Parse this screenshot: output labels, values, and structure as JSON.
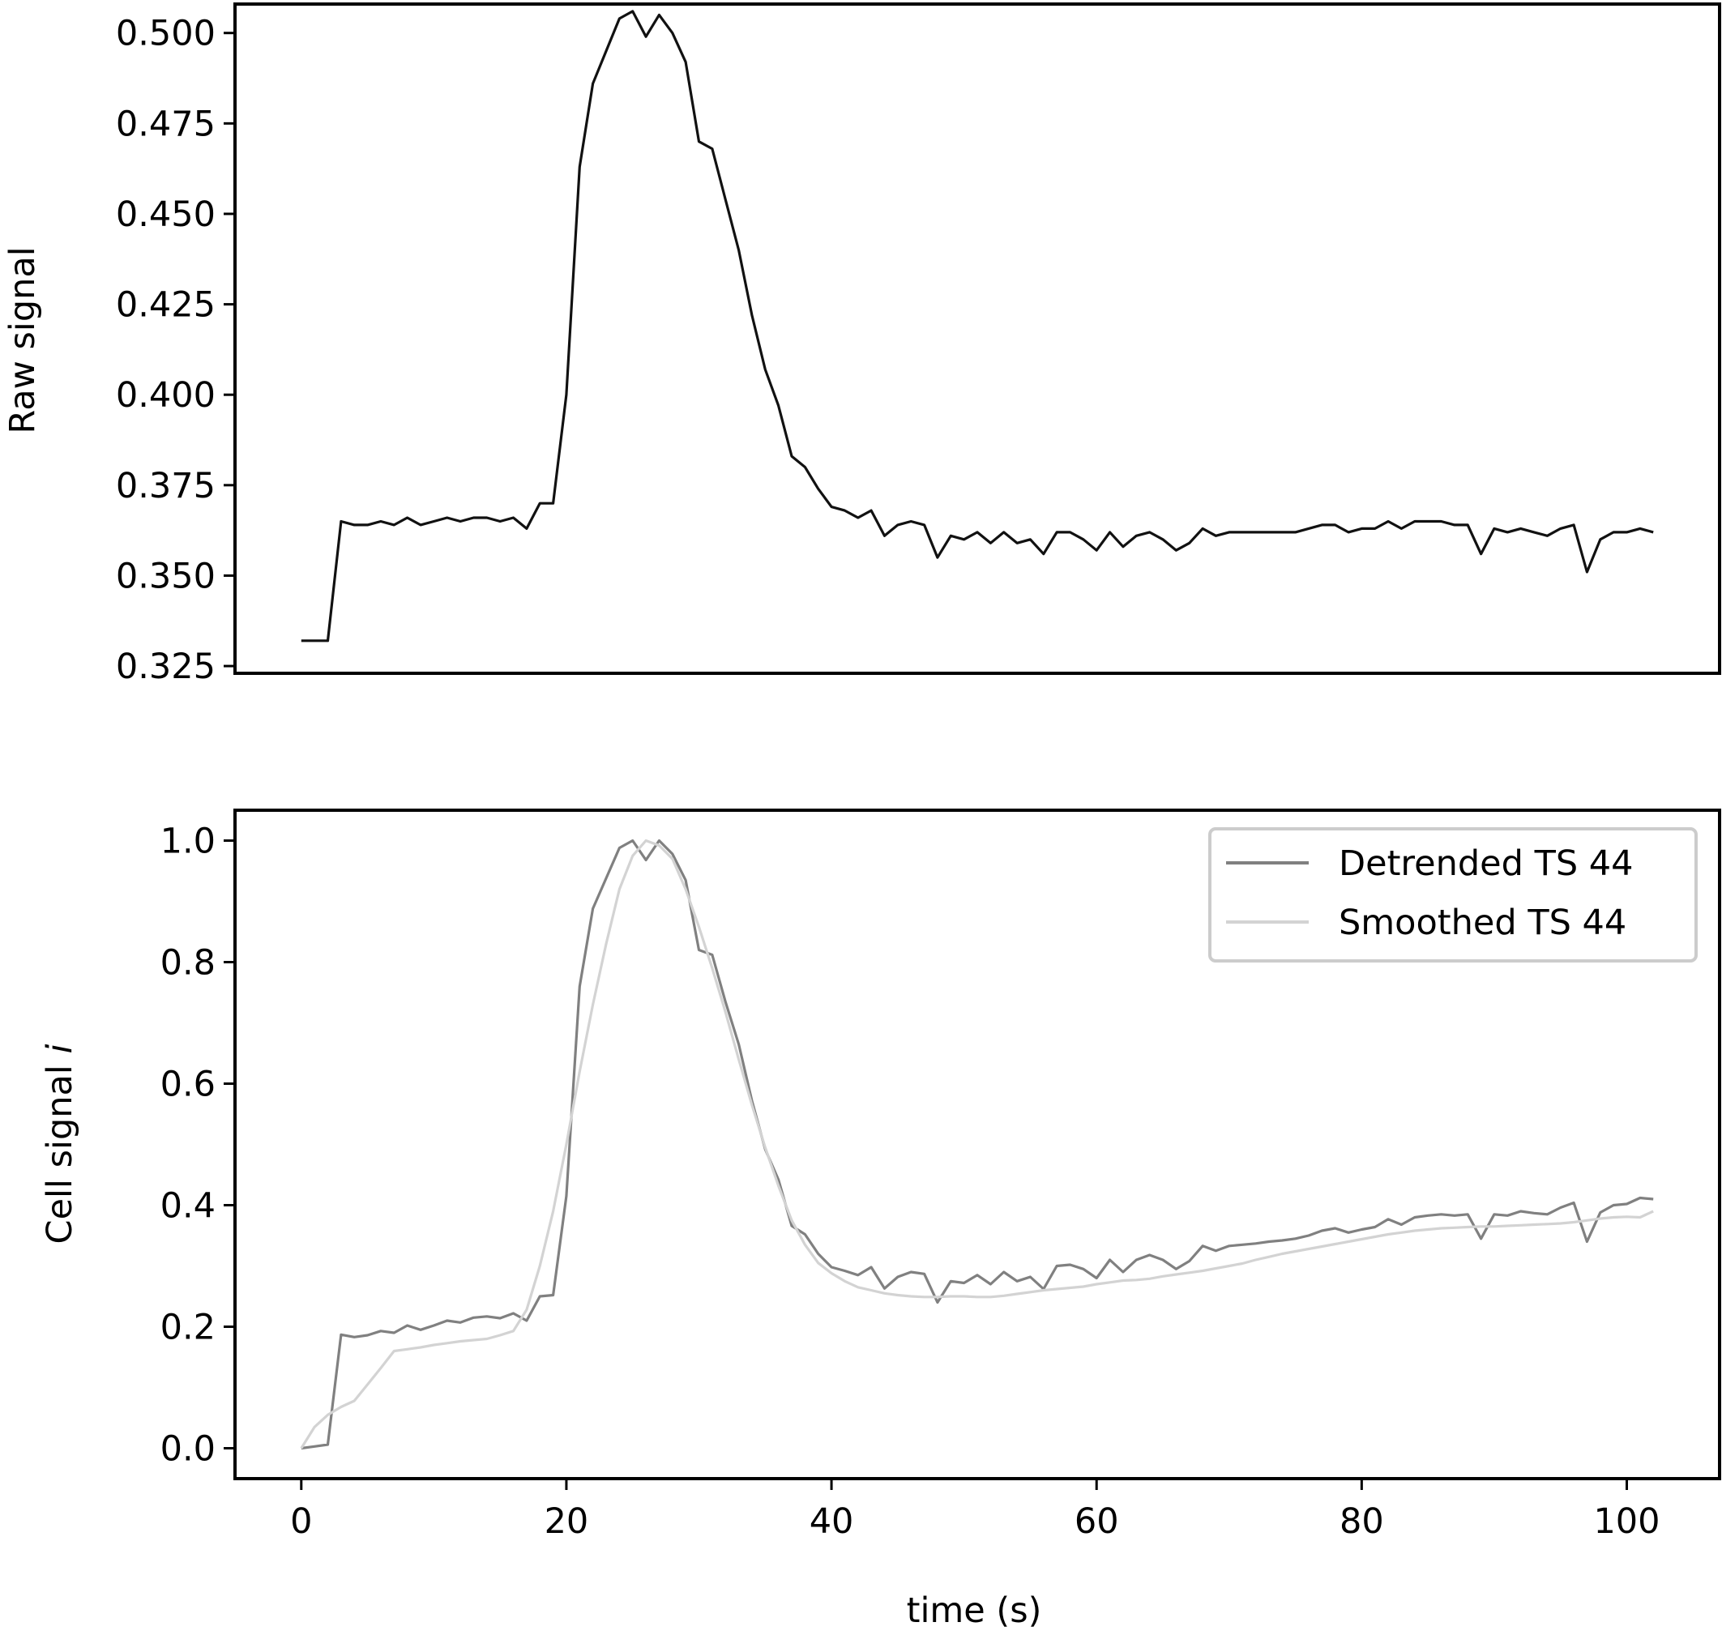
{
  "chart_data": [
    {
      "type": "line",
      "title": "",
      "xlabel": "",
      "ylabel": "Raw signal",
      "xlim": [
        -5,
        107
      ],
      "ylim": [
        0.323,
        0.508
      ],
      "yticks": [
        0.325,
        0.35,
        0.375,
        0.4,
        0.425,
        0.45,
        0.475,
        0.5
      ],
      "ytick_labels": [
        "0.325",
        "0.350",
        "0.375",
        "0.400",
        "0.425",
        "0.450",
        "0.475",
        "0.500"
      ],
      "grid": false,
      "series": [
        {
          "color": "#111111",
          "x": [
            0,
            1,
            2,
            3,
            4,
            5,
            6,
            7,
            8,
            9,
            10,
            11,
            12,
            13,
            14,
            15,
            16,
            17,
            18,
            19,
            20,
            21,
            22,
            23,
            24,
            25,
            26,
            27,
            28,
            29,
            30,
            31,
            32,
            33,
            34,
            35,
            36,
            37,
            38,
            39,
            40,
            41,
            42,
            43,
            44,
            45,
            46,
            47,
            48,
            49,
            50,
            51,
            52,
            53,
            54,
            55,
            56,
            57,
            58,
            59,
            60,
            61,
            62,
            63,
            64,
            65,
            66,
            67,
            68,
            69,
            70,
            71,
            72,
            73,
            74,
            75,
            76,
            77,
            78,
            79,
            80,
            81,
            82,
            83,
            84,
            85,
            86,
            87,
            88,
            89,
            90,
            91,
            92,
            93,
            94,
            95,
            96,
            97,
            98,
            99,
            100,
            101,
            102
          ],
          "y": [
            0.332,
            0.332,
            0.332,
            0.365,
            0.364,
            0.364,
            0.365,
            0.364,
            0.366,
            0.364,
            0.365,
            0.366,
            0.365,
            0.366,
            0.366,
            0.365,
            0.366,
            0.363,
            0.37,
            0.37,
            0.4,
            0.463,
            0.486,
            0.495,
            0.504,
            0.506,
            0.499,
            0.505,
            0.5,
            0.492,
            0.47,
            0.468,
            0.454,
            0.44,
            0.422,
            0.407,
            0.397,
            0.383,
            0.38,
            0.374,
            0.369,
            0.368,
            0.366,
            0.368,
            0.361,
            0.364,
            0.365,
            0.364,
            0.355,
            0.361,
            0.36,
            0.362,
            0.359,
            0.362,
            0.359,
            0.36,
            0.356,
            0.362,
            0.362,
            0.36,
            0.357,
            0.362,
            0.358,
            0.361,
            0.362,
            0.36,
            0.357,
            0.359,
            0.363,
            0.361,
            0.362,
            0.362,
            0.362,
            0.362,
            0.362,
            0.362,
            0.363,
            0.364,
            0.364,
            0.362,
            0.363,
            0.363,
            0.365,
            0.363,
            0.365,
            0.365,
            0.365,
            0.364,
            0.364,
            0.356,
            0.363,
            0.362,
            0.363,
            0.362,
            0.361,
            0.363,
            0.364,
            0.351,
            0.36,
            0.362,
            0.362,
            0.363,
            0.362
          ]
        }
      ]
    },
    {
      "type": "line",
      "title": "",
      "xlabel": "time (s)",
      "ylabel": "Cell signal",
      "ylabel_italic_suffix": "i",
      "xlim": [
        -5,
        107
      ],
      "ylim": [
        -0.05,
        1.05
      ],
      "xticks": [
        0,
        20,
        40,
        60,
        80,
        100
      ],
      "xtick_labels": [
        "0",
        "20",
        "40",
        "60",
        "80",
        "100"
      ],
      "yticks": [
        0.0,
        0.2,
        0.4,
        0.6,
        0.8,
        1.0
      ],
      "ytick_labels": [
        "0.0",
        "0.2",
        "0.4",
        "0.6",
        "0.8",
        "1.0"
      ],
      "grid": false,
      "legend": "top-right",
      "series": [
        {
          "name": "Detrended TS 44",
          "color": "#808080",
          "x": [
            0,
            1,
            2,
            3,
            4,
            5,
            6,
            7,
            8,
            9,
            10,
            11,
            12,
            13,
            14,
            15,
            16,
            17,
            18,
            19,
            20,
            21,
            22,
            23,
            24,
            25,
            26,
            27,
            28,
            29,
            30,
            31,
            32,
            33,
            34,
            35,
            36,
            37,
            38,
            39,
            40,
            41,
            42,
            43,
            44,
            45,
            46,
            47,
            48,
            49,
            50,
            51,
            52,
            53,
            54,
            55,
            56,
            57,
            58,
            59,
            60,
            61,
            62,
            63,
            64,
            65,
            66,
            67,
            68,
            69,
            70,
            71,
            72,
            73,
            74,
            75,
            76,
            77,
            78,
            79,
            80,
            81,
            82,
            83,
            84,
            85,
            86,
            87,
            88,
            89,
            90,
            91,
            92,
            93,
            94,
            95,
            96,
            97,
            98,
            99,
            100,
            101,
            102
          ],
          "y": [
            0.0,
            0.003,
            0.006,
            0.187,
            0.183,
            0.186,
            0.193,
            0.19,
            0.202,
            0.195,
            0.202,
            0.21,
            0.207,
            0.215,
            0.217,
            0.214,
            0.222,
            0.21,
            0.25,
            0.252,
            0.415,
            0.76,
            0.888,
            0.938,
            0.988,
            1.0,
            0.968,
            1.0,
            0.978,
            0.935,
            0.82,
            0.812,
            0.735,
            0.665,
            0.572,
            0.492,
            0.442,
            0.366,
            0.352,
            0.32,
            0.298,
            0.292,
            0.285,
            0.298,
            0.263,
            0.282,
            0.29,
            0.287,
            0.24,
            0.275,
            0.272,
            0.285,
            0.27,
            0.29,
            0.275,
            0.282,
            0.262,
            0.3,
            0.302,
            0.295,
            0.28,
            0.31,
            0.29,
            0.31,
            0.318,
            0.31,
            0.295,
            0.308,
            0.333,
            0.325,
            0.333,
            0.335,
            0.337,
            0.34,
            0.342,
            0.345,
            0.35,
            0.358,
            0.362,
            0.355,
            0.36,
            0.364,
            0.377,
            0.368,
            0.38,
            0.383,
            0.385,
            0.383,
            0.385,
            0.345,
            0.385,
            0.383,
            0.39,
            0.387,
            0.385,
            0.396,
            0.404,
            0.34,
            0.388,
            0.4,
            0.402,
            0.412,
            0.41
          ]
        },
        {
          "name": "Smoothed TS 44",
          "color": "#d3d3d3",
          "x": [
            0,
            1,
            2,
            3,
            4,
            5,
            6,
            7,
            8,
            9,
            10,
            11,
            12,
            13,
            14,
            15,
            16,
            17,
            18,
            19,
            20,
            21,
            22,
            23,
            24,
            25,
            26,
            27,
            28,
            29,
            30,
            31,
            32,
            33,
            34,
            35,
            36,
            37,
            38,
            39,
            40,
            41,
            42,
            43,
            44,
            45,
            46,
            47,
            48,
            49,
            50,
            51,
            52,
            53,
            54,
            55,
            56,
            57,
            58,
            59,
            60,
            61,
            62,
            63,
            64,
            65,
            66,
            67,
            68,
            69,
            70,
            71,
            72,
            73,
            74,
            75,
            76,
            77,
            78,
            79,
            80,
            81,
            82,
            83,
            84,
            85,
            86,
            87,
            88,
            89,
            90,
            91,
            92,
            93,
            94,
            95,
            96,
            97,
            98,
            99,
            100,
            101,
            102
          ],
          "y": [
            0.0,
            0.035,
            0.055,
            0.068,
            0.078,
            0.105,
            0.132,
            0.16,
            0.163,
            0.166,
            0.17,
            0.173,
            0.176,
            0.178,
            0.18,
            0.186,
            0.193,
            0.228,
            0.3,
            0.39,
            0.5,
            0.62,
            0.73,
            0.83,
            0.92,
            0.975,
            1.0,
            0.992,
            0.97,
            0.92,
            0.858,
            0.79,
            0.718,
            0.64,
            0.565,
            0.495,
            0.432,
            0.375,
            0.335,
            0.305,
            0.288,
            0.275,
            0.265,
            0.26,
            0.255,
            0.252,
            0.25,
            0.249,
            0.249,
            0.25,
            0.25,
            0.249,
            0.249,
            0.251,
            0.254,
            0.257,
            0.26,
            0.262,
            0.264,
            0.266,
            0.27,
            0.273,
            0.276,
            0.277,
            0.279,
            0.283,
            0.286,
            0.289,
            0.292,
            0.296,
            0.3,
            0.304,
            0.31,
            0.315,
            0.32,
            0.324,
            0.328,
            0.332,
            0.336,
            0.34,
            0.344,
            0.348,
            0.352,
            0.355,
            0.358,
            0.36,
            0.362,
            0.363,
            0.364,
            0.365,
            0.365,
            0.366,
            0.367,
            0.368,
            0.369,
            0.37,
            0.372,
            0.375,
            0.378,
            0.38,
            0.381,
            0.38,
            0.39
          ]
        }
      ]
    }
  ]
}
